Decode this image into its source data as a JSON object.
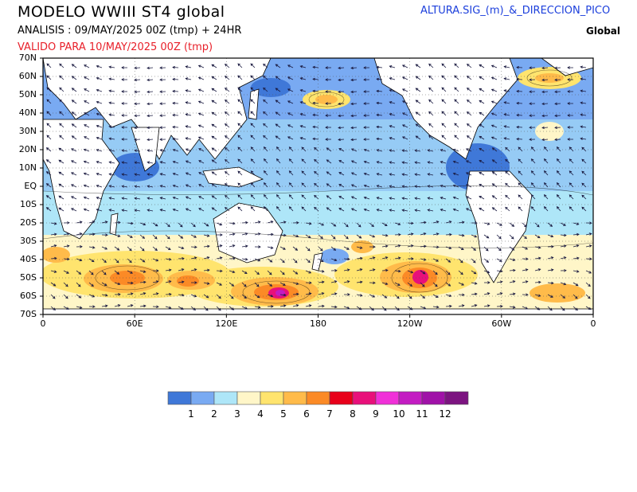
{
  "header": {
    "title": "MODELO  WWIII  ST4  global",
    "analysis": "ANALISIS : 09/MAY/2025 00Z  (tmp) + 24HR",
    "valid": "VALIDO PARA  10/MAY/2025 00Z  (tmp)",
    "variable": "ALTURA.SIG_(m)_&_DIRECCION_PICO",
    "region": "Global"
  },
  "map": {
    "lat_labels": [
      "70N",
      "60N",
      "50N",
      "40N",
      "30N",
      "20N",
      "10N",
      "EQ",
      "10S",
      "20S",
      "30S",
      "40S",
      "50S",
      "60S",
      "70S"
    ],
    "lon_labels": [
      "0",
      "60E",
      "120E",
      "180",
      "120W",
      "60W",
      "0"
    ]
  },
  "colorbar": {
    "colors": [
      "#3f78d8",
      "#79aaf2",
      "#aee6f8",
      "#fff6c8",
      "#ffe46e",
      "#ffbb4a",
      "#fb8a26",
      "#e8001a",
      "#e8107a",
      "#f030d8",
      "#c31cc2",
      "#a012a8",
      "#7c1480"
    ],
    "labels": [
      "1",
      "2",
      "3",
      "4",
      "5",
      "6",
      "7",
      "8",
      "9",
      "10",
      "11",
      "12"
    ]
  }
}
